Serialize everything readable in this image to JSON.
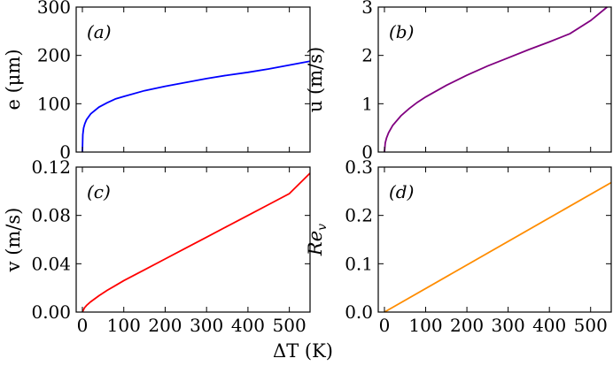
{
  "figure": {
    "xlabel": "ΔT (K)"
  },
  "chart_data": [
    {
      "type": "line",
      "panel": "(a)",
      "ylabel": "e (μm)",
      "xlim": [
        -15,
        550
      ],
      "ylim": [
        0,
        300
      ],
      "xticks": [
        0,
        100,
        200,
        300,
        400,
        500
      ],
      "yticks": [
        0,
        100,
        200,
        300
      ],
      "xtick_labels": [
        "0",
        "100",
        "200",
        "300",
        "400",
        "500"
      ],
      "ytick_labels": [
        "0",
        "100",
        "200",
        "300"
      ],
      "show_xtick_labels": false,
      "series": [
        {
          "color": "#0000ff",
          "x": [
            0,
            1,
            3,
            6,
            10,
            20,
            40,
            60,
            80,
            100,
            150,
            200,
            250,
            300,
            350,
            400,
            450,
            500,
            550
          ],
          "y": [
            0,
            36,
            50,
            59,
            67,
            79,
            93,
            102,
            110,
            115,
            127,
            136,
            144,
            152,
            159,
            165,
            172,
            180,
            188
          ]
        }
      ]
    },
    {
      "type": "line",
      "panel": "(b)",
      "ylabel": "u (m/s)",
      "xlim": [
        -15,
        550
      ],
      "ylim": [
        0,
        3
      ],
      "xticks": [
        0,
        100,
        200,
        300,
        400,
        500
      ],
      "yticks": [
        0,
        1,
        2,
        3
      ],
      "xtick_labels": [
        "0",
        "100",
        "200",
        "300",
        "400",
        "500"
      ],
      "ytick_labels": [
        "0",
        "1",
        "2",
        "3"
      ],
      "show_xtick_labels": false,
      "series": [
        {
          "color": "#800080",
          "x": [
            0,
            2,
            5,
            10,
            20,
            40,
            60,
            80,
            100,
            150,
            200,
            250,
            300,
            350,
            400,
            450,
            500,
            540
          ],
          "y": [
            0,
            0.19,
            0.29,
            0.4,
            0.55,
            0.75,
            0.9,
            1.03,
            1.14,
            1.38,
            1.59,
            1.78,
            1.95,
            2.12,
            2.28,
            2.45,
            2.72,
            3.0
          ]
        }
      ]
    },
    {
      "type": "line",
      "panel": "(c)",
      "ylabel": "v (m/s)",
      "xlim": [
        -15,
        550
      ],
      "ylim": [
        0,
        0.12
      ],
      "xticks": [
        0,
        100,
        200,
        300,
        400,
        500
      ],
      "yticks": [
        0,
        0.04,
        0.08,
        0.12
      ],
      "xtick_labels": [
        "0",
        "100",
        "200",
        "300",
        "400",
        "500"
      ],
      "ytick_labels": [
        "0.00",
        "0.04",
        "0.08",
        "0.12"
      ],
      "show_xtick_labels": true,
      "series": [
        {
          "color": "#ff0000",
          "x": [
            0,
            5,
            10,
            20,
            40,
            60,
            80,
            100,
            150,
            200,
            250,
            300,
            350,
            400,
            450,
            500,
            550
          ],
          "y": [
            0,
            0.0035,
            0.0055,
            0.0085,
            0.0135,
            0.018,
            0.022,
            0.026,
            0.035,
            0.044,
            0.053,
            0.062,
            0.071,
            0.08,
            0.089,
            0.098,
            0.115
          ]
        }
      ]
    },
    {
      "type": "line",
      "panel": "(d)",
      "ylabel": "Re_v",
      "xlim": [
        -15,
        550
      ],
      "ylim": [
        0,
        0.3
      ],
      "xticks": [
        0,
        100,
        200,
        300,
        400,
        500
      ],
      "yticks": [
        0,
        0.1,
        0.2,
        0.3
      ],
      "xtick_labels": [
        "0",
        "100",
        "200",
        "300",
        "400",
        "500"
      ],
      "ytick_labels": [
        "0.0",
        "0.1",
        "0.2",
        "0.3"
      ],
      "show_xtick_labels": true,
      "series": [
        {
          "color": "#ff8c00",
          "x": [
            0,
            550
          ],
          "y": [
            0,
            0.268
          ]
        }
      ]
    }
  ]
}
